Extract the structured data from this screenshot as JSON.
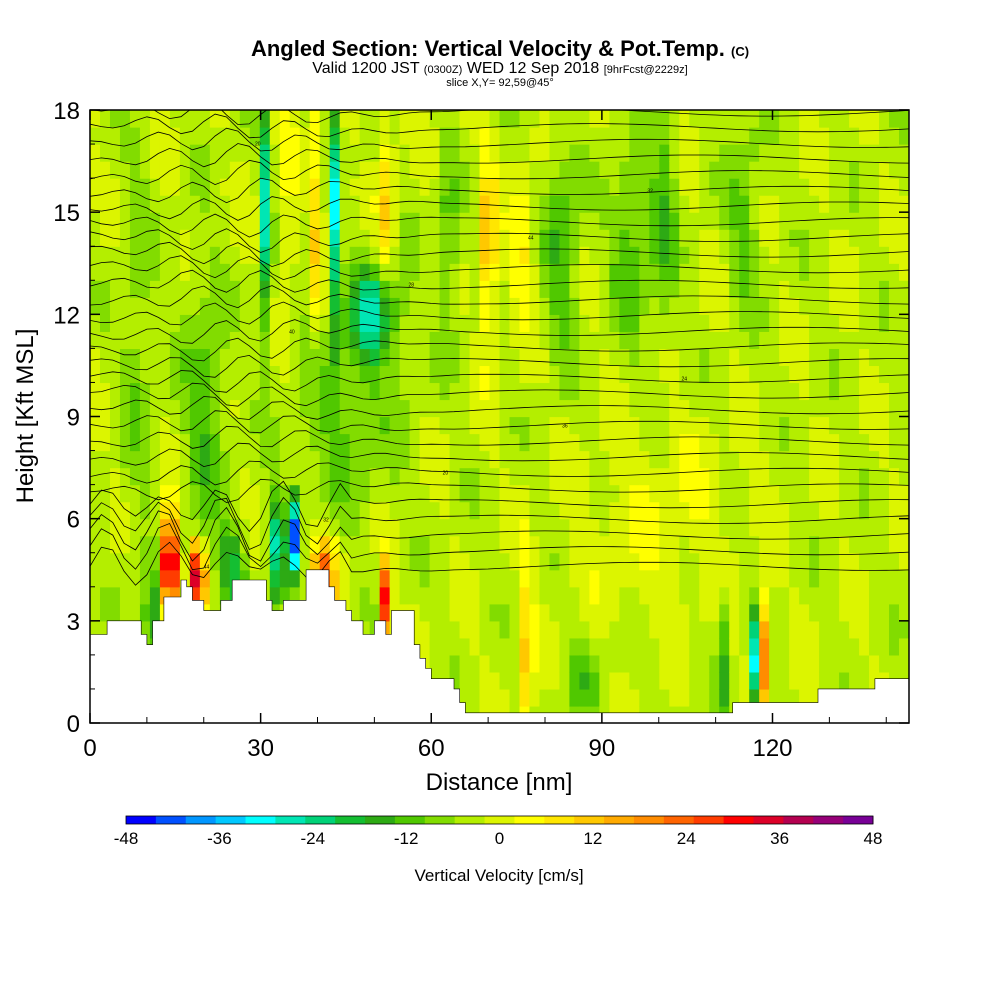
{
  "title": {
    "main": "Angled Section: Vertical Velocity & Pot.Temp.",
    "main_unit": "(C)",
    "valid_prefix": "Valid 1200 JST",
    "valid_utc": "(0300Z)",
    "valid_date": "WED 12 Sep 2018",
    "forecast": "[9hrFcst@2229z]",
    "slice": "slice X,Y= 92,59@45°"
  },
  "chart_data": {
    "type": "heatmap",
    "xlabel": "Distance [nm]",
    "ylabel": "Height [Kft MSL]",
    "xlim": [
      0,
      144
    ],
    "ylim": [
      0,
      18
    ],
    "x_ticks": [
      "0",
      "30",
      "60",
      "90",
      "120"
    ],
    "y_ticks": [
      "0",
      "3",
      "6",
      "9",
      "12",
      "15",
      "18"
    ],
    "colorbar": {
      "label": "Vertical Velocity [cm/s]",
      "range": [
        -48,
        48
      ],
      "step": 4,
      "ticks": [
        "-48",
        "-36",
        "-24",
        "-12",
        "0",
        "12",
        "24",
        "36",
        "48"
      ],
      "colors": [
        "#0000ff",
        "#0050ff",
        "#0096ff",
        "#00c8ff",
        "#00ffff",
        "#00e6b4",
        "#00d278",
        "#14be32",
        "#2daa14",
        "#50c800",
        "#82dc00",
        "#b4ee00",
        "#dcf500",
        "#ffff00",
        "#ffe600",
        "#ffc800",
        "#ffaa00",
        "#ff8c00",
        "#ff6400",
        "#ff3c00",
        "#ff0000",
        "#dc0028",
        "#b40050",
        "#960078",
        "#780096"
      ]
    },
    "terrain_kft": [
      [
        0,
        2.6
      ],
      [
        3,
        2.6
      ],
      [
        3,
        3
      ],
      [
        9,
        3
      ],
      [
        9,
        2.6
      ],
      [
        10,
        2.6
      ],
      [
        10,
        2.3
      ],
      [
        11,
        2.3
      ],
      [
        11,
        3
      ],
      [
        13,
        3
      ],
      [
        13,
        3.7
      ],
      [
        16,
        3.7
      ],
      [
        16,
        4.2
      ],
      [
        17,
        4.2
      ],
      [
        17,
        4
      ],
      [
        18,
        4
      ],
      [
        18,
        3.6
      ],
      [
        20,
        3.6
      ],
      [
        20,
        3.3
      ],
      [
        23,
        3.3
      ],
      [
        23,
        3.6
      ],
      [
        25,
        3.6
      ],
      [
        25,
        4.2
      ],
      [
        31,
        4.2
      ],
      [
        31,
        3.6
      ],
      [
        32,
        3.6
      ],
      [
        32,
        3.3
      ],
      [
        34,
        3.3
      ],
      [
        34,
        3.6
      ],
      [
        38,
        3.6
      ],
      [
        38,
        4.5
      ],
      [
        42,
        4.5
      ],
      [
        42,
        4
      ],
      [
        43,
        4
      ],
      [
        43,
        3.6
      ],
      [
        45,
        3.6
      ],
      [
        45,
        3.3
      ],
      [
        46,
        3.3
      ],
      [
        46,
        3
      ],
      [
        48,
        3
      ],
      [
        48,
        2.6
      ],
      [
        50,
        2.6
      ],
      [
        50,
        3
      ],
      [
        52,
        3
      ],
      [
        52,
        2.6
      ],
      [
        53,
        2.6
      ],
      [
        53,
        3.3
      ],
      [
        57,
        3.3
      ],
      [
        57,
        2.3
      ],
      [
        58,
        2.3
      ],
      [
        58,
        1.9
      ],
      [
        59,
        1.9
      ],
      [
        59,
        1.6
      ],
      [
        60,
        1.6
      ],
      [
        60,
        1.3
      ],
      [
        64,
        1.3
      ],
      [
        64,
        1
      ],
      [
        65,
        1
      ],
      [
        65,
        0.6
      ],
      [
        66,
        0.6
      ],
      [
        66,
        0.3
      ],
      [
        113,
        0.3
      ],
      [
        113,
        0.6
      ],
      [
        128,
        0.6
      ],
      [
        128,
        1
      ],
      [
        138,
        1
      ],
      [
        138,
        1.3
      ],
      [
        144,
        1.3
      ]
    ],
    "potential_temperature_levels_c": [
      "44",
      "40",
      "36",
      "32",
      "28",
      "24",
      "20"
    ]
  }
}
